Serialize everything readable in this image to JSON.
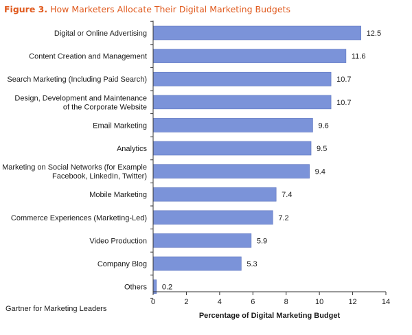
{
  "figure": {
    "label": "Figure 3.",
    "title": "How Marketers Allocate Their Digital Marketing Budgets"
  },
  "source": "Gartner for Marketing Leaders",
  "colors": {
    "bar": "#7b93d9",
    "bar_stroke": "#5d74be",
    "title": "#e05a1e",
    "axis": "#333333"
  },
  "chart_data": {
    "type": "bar",
    "orientation": "horizontal",
    "categories": [
      [
        "Digital or Online Advertising"
      ],
      [
        "Content Creation and Management"
      ],
      [
        "Search Marketing (Including Paid Search)"
      ],
      [
        "Design, Development and Maintenance",
        "of the Corporate Website"
      ],
      [
        "Email Marketing"
      ],
      [
        "Analytics"
      ],
      [
        "Marketing on Social Networks (for Example",
        "Facebook, LinkedIn, Twitter)"
      ],
      [
        "Mobile Marketing"
      ],
      [
        "Commerce Experiences (Marketing-Led)"
      ],
      [
        "Video Production"
      ],
      [
        "Company Blog"
      ],
      [
        "Others"
      ]
    ],
    "values": [
      12.5,
      11.6,
      10.7,
      10.7,
      9.6,
      9.5,
      9.4,
      7.4,
      7.2,
      5.9,
      5.3,
      0.2
    ],
    "value_labels": [
      "12.5",
      "11.6",
      "10.7",
      "10.7",
      "9.6",
      "9.5",
      "9.4",
      "7.4",
      "7.2",
      "5.9",
      "5.3",
      "0.2"
    ],
    "xlabel": "Percentage of Digital Marketing Budget",
    "ylabel": "",
    "xlim": [
      0,
      14
    ],
    "xticks": [
      0,
      2,
      4,
      6,
      8,
      10,
      12,
      14
    ],
    "grid": false,
    "legend": "none"
  }
}
